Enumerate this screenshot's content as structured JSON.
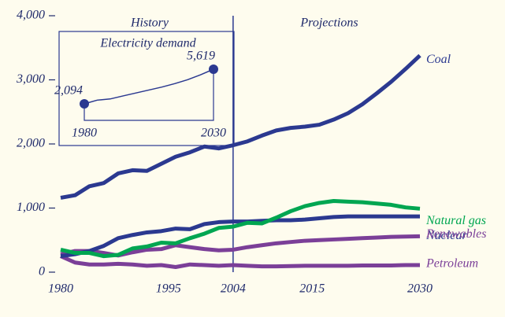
{
  "chart_data": [
    {
      "type": "line",
      "annotations": [
        "History",
        "Projections"
      ],
      "divider": 2004,
      "x": [
        1980,
        1982,
        1984,
        1986,
        1988,
        1990,
        1992,
        1994,
        1996,
        1998,
        2000,
        2002,
        2004,
        2006,
        2008,
        2010,
        2012,
        2014,
        2016,
        2018,
        2020,
        2022,
        2024,
        2026,
        2028,
        2030
      ],
      "series": [
        {
          "name": "Coal",
          "color": "#2b3990",
          "values": [
            1160,
            1200,
            1340,
            1390,
            1540,
            1590,
            1580,
            1690,
            1800,
            1870,
            1960,
            1930,
            1980,
            2040,
            2130,
            2210,
            2250,
            2270,
            2300,
            2380,
            2480,
            2620,
            2790,
            2970,
            3170,
            3380
          ]
        },
        {
          "name": "Natural gas",
          "color": "#00a651",
          "values": [
            350,
            300,
            300,
            250,
            270,
            370,
            400,
            460,
            450,
            530,
            600,
            690,
            710,
            770,
            760,
            850,
            950,
            1030,
            1080,
            1110,
            1100,
            1090,
            1070,
            1050,
            1010,
            990
          ]
        },
        {
          "name": "Nuclear",
          "color": "#2b3990",
          "values": [
            250,
            280,
            330,
            410,
            530,
            580,
            620,
            640,
            680,
            670,
            750,
            780,
            790,
            790,
            800,
            810,
            810,
            820,
            840,
            860,
            870,
            870,
            870,
            870,
            870,
            870
          ]
        },
        {
          "name": "Renewables",
          "color": "#7b3f98",
          "values": [
            280,
            330,
            330,
            300,
            260,
            310,
            350,
            360,
            420,
            390,
            360,
            340,
            350,
            390,
            420,
            450,
            470,
            490,
            500,
            510,
            520,
            530,
            540,
            550,
            555,
            560
          ]
        },
        {
          "name": "Petroleum",
          "color": "#7b3f98",
          "values": [
            250,
            150,
            120,
            120,
            130,
            120,
            100,
            110,
            80,
            120,
            110,
            100,
            110,
            100,
            90,
            90,
            95,
            100,
            100,
            100,
            100,
            105,
            105,
            105,
            110,
            110
          ]
        }
      ],
      "xlim": [
        1980,
        2030
      ],
      "xticks": [
        1980,
        1995,
        2004,
        2015,
        2030
      ],
      "ylim": [
        0,
        4000
      ],
      "yticks": [
        0,
        {
          "value": 1000,
          "label": "1,000"
        },
        {
          "value": 2000,
          "label": "2,000"
        },
        {
          "value": 3000,
          "label": "3,000"
        },
        {
          "value": 4000,
          "label": "4,000"
        }
      ]
    },
    {
      "type": "line",
      "title": "Electricity demand",
      "color": "#2b3990",
      "x": [
        1980,
        1985,
        1990,
        1995,
        2000,
        2005,
        2010,
        2015,
        2020,
        2025,
        2030
      ],
      "values": [
        2094,
        2470,
        2590,
        2900,
        3200,
        3500,
        3800,
        4150,
        4550,
        5050,
        5619
      ],
      "value_labels": [
        "2,094",
        null,
        null,
        null,
        null,
        null,
        null,
        null,
        null,
        null,
        "5,619"
      ],
      "xlim": [
        1980,
        2030
      ],
      "xticks": [
        1980,
        2030
      ]
    }
  ]
}
